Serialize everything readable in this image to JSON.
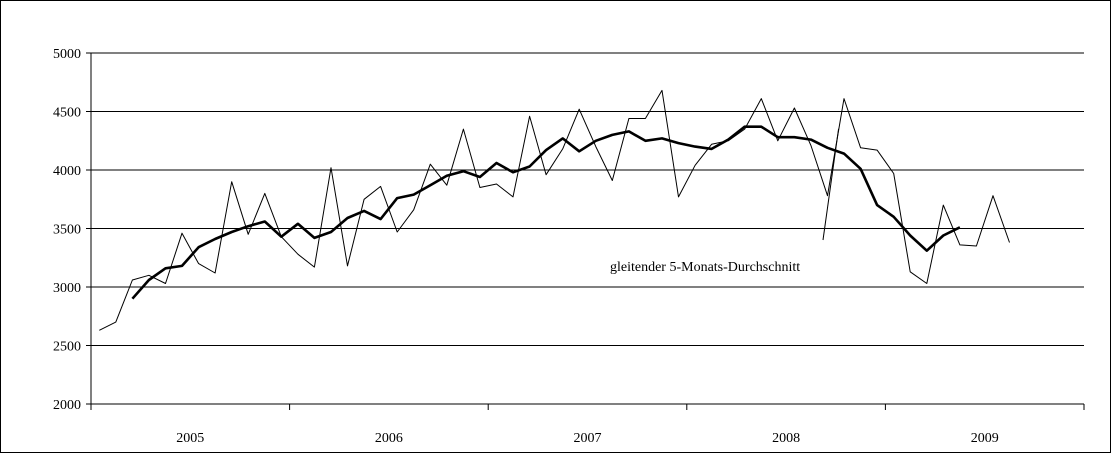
{
  "chart_data": {
    "type": "line",
    "title": "",
    "xlabel": "",
    "ylabel": "",
    "ylim": [
      2000,
      5000
    ],
    "yticks": [
      2000,
      2500,
      3000,
      3500,
      4000,
      4500,
      5000
    ],
    "year_labels": [
      "2005",
      "2006",
      "2007",
      "2008",
      "2009"
    ],
    "grid": "horizontal",
    "months_per_year": 12,
    "series": [
      {
        "name": "",
        "style": "thin",
        "color": "#000000",
        "values": [
          2630,
          2700,
          3060,
          3100,
          3030,
          3460,
          3200,
          3120,
          3900,
          3450,
          3800,
          3430,
          3280,
          3170,
          4020,
          3180,
          3750,
          3860,
          3470,
          3660,
          4050,
          3870,
          4350,
          3850,
          3880,
          3770,
          4460,
          3960,
          4180,
          4520,
          4200,
          3910,
          4440,
          4440,
          4680,
          3770,
          4040,
          4220,
          4250,
          4350,
          4610,
          4250,
          4530,
          4210,
          3780,
          4610,
          4190,
          4170,
          3970,
          3130,
          3030,
          3700,
          3360,
          3350,
          3780,
          3380
        ]
      },
      {
        "name": "gleitender 5-Monats-Durchschnitt",
        "style": "bold",
        "color": "#000000",
        "values": [
          null,
          null,
          2900,
          3060,
          3160,
          3180,
          3340,
          3410,
          3470,
          3520,
          3560,
          3430,
          3540,
          3420,
          3470,
          3590,
          3650,
          3580,
          3760,
          3790,
          3870,
          3950,
          3990,
          3940,
          4060,
          3980,
          4030,
          4170,
          4270,
          4160,
          4250,
          4300,
          4330,
          4250,
          4270,
          4230,
          4200,
          4180,
          4260,
          4370,
          4370,
          4280,
          4280,
          4260,
          4190,
          4140,
          4010,
          3700,
          3600,
          3440,
          3310,
          3440,
          3510,
          null,
          null,
          null
        ]
      }
    ],
    "annotations": [
      {
        "text": "gleitender 5-Monats-Durchschnitt",
        "points_to_series": 1
      }
    ]
  }
}
